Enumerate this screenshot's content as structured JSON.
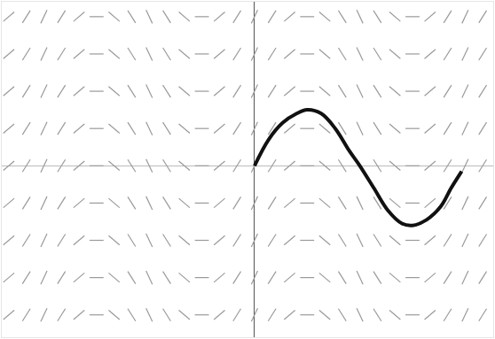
{
  "chart_data": {
    "type": "line",
    "x": [
      0,
      0.4,
      0.8,
      1.2,
      1.5,
      1.9,
      2.3,
      2.7,
      3.0,
      3.4,
      3.8,
      4.2,
      4.5,
      4.9,
      5.3,
      5.6,
      5.9
    ],
    "values": [
      0,
      0.7,
      1.15,
      1.4,
      1.5,
      1.4,
      1.0,
      0.4,
      0,
      -0.6,
      -1.2,
      -1.55,
      -1.6,
      -1.45,
      -1.1,
      -0.6,
      -0.15
    ],
    "color": "#111111",
    "slope_field": {
      "x": [
        -7,
        -6.5,
        -6,
        -5.5,
        -5,
        -4.5,
        -4,
        -3.5,
        -3,
        -2.5,
        -2,
        -1.5,
        -1,
        -0.5,
        0,
        0.5,
        1,
        1.5,
        2,
        2.5,
        3,
        3.5,
        4,
        4.5,
        5,
        5.5,
        6,
        6.5
      ],
      "y": [
        -4,
        -3,
        -2,
        -1,
        0,
        1,
        2,
        3,
        4
      ],
      "slopes": [
        0.8,
        1.5,
        2,
        1.5,
        0.8,
        0,
        -0.8,
        -1.5,
        -2,
        -1.5,
        -0.8,
        0,
        0.8,
        1.5,
        2,
        1.5,
        0.8,
        0,
        -0.8,
        -1.5,
        -2,
        -1.5,
        -0.8,
        0,
        0.8,
        1.5,
        2,
        1.5
      ],
      "color": "#9a9a9a"
    },
    "xlim": [
      -7.2,
      6.8
    ],
    "ylim": [
      -4.6,
      4.4
    ],
    "tick_labels": false,
    "grid": false
  }
}
